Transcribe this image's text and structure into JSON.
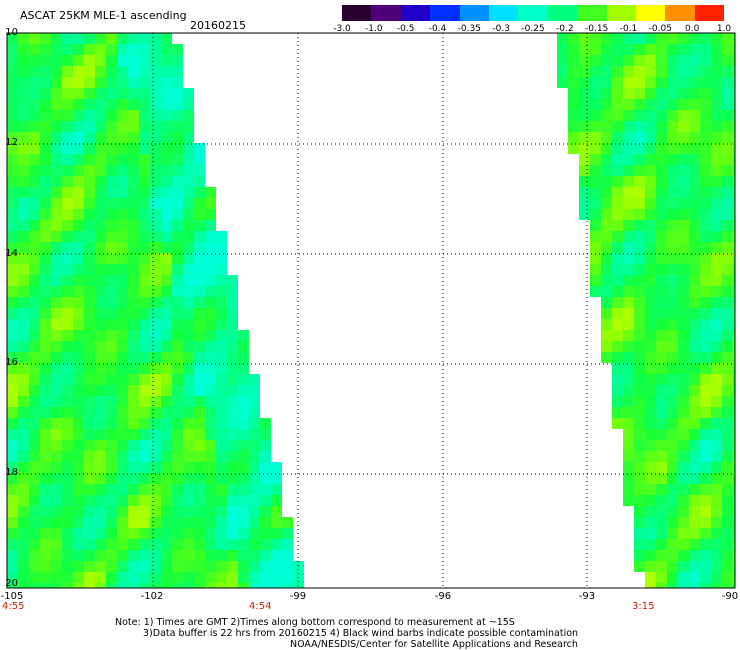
{
  "header": {
    "title": "ASCAT 25KM MLE-1 ascending",
    "date": "20160215"
  },
  "colorbar": {
    "labels": [
      "-3.0",
      "-1.0",
      "-0.5",
      "-0.4",
      "-0.35",
      "-0.3",
      "-0.25",
      "-0.2",
      "-0.15",
      "-0.1",
      "-0.05",
      "0.0",
      "1.0"
    ],
    "colors": [
      "#2a0030",
      "#50007a",
      "#2000c8",
      "#0030ff",
      "#0090ff",
      "#00e0ff",
      "#00ffc8",
      "#00ff80",
      "#40ff20",
      "#a0ff00",
      "#ffff00",
      "#ff9000",
      "#ff2000"
    ]
  },
  "map": {
    "lat_labels": [
      "10",
      "12",
      "14",
      "16",
      "18",
      "20"
    ],
    "lon_labels": [
      "-105",
      "-102",
      "-99",
      "-96",
      "-93",
      "-90"
    ],
    "time_labels": [
      "4:55",
      "4:54",
      "3:15"
    ]
  },
  "notes": {
    "line1": "Note: 1) Times are GMT 2)Times along bottom correspond to measurement at ~15S",
    "line2": "3)Data buffer is 22 hrs from 20160215 4) Black wind barbs indicate possible contamination",
    "line3": "NOAA/NESDIS/Center for Satellite Applications and Research"
  }
}
